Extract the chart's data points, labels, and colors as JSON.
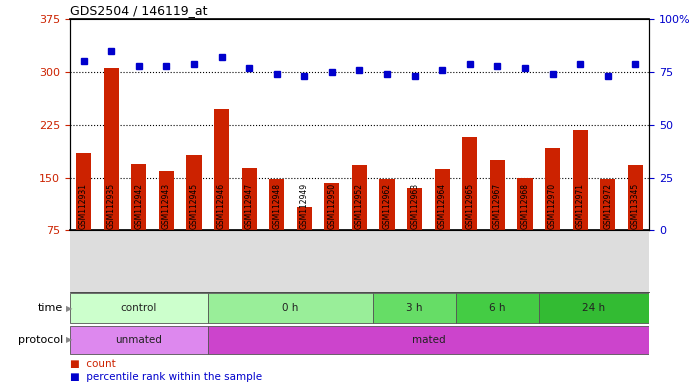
{
  "title": "GDS2504 / 146119_at",
  "samples": [
    "GSM112931",
    "GSM112935",
    "GSM112942",
    "GSM112943",
    "GSM112945",
    "GSM112946",
    "GSM112947",
    "GSM112948",
    "GSM112949",
    "GSM112950",
    "GSM112952",
    "GSM112962",
    "GSM112963",
    "GSM112964",
    "GSM112965",
    "GSM112967",
    "GSM112968",
    "GSM112970",
    "GSM112971",
    "GSM112972",
    "GSM113345"
  ],
  "bar_values": [
    185,
    305,
    170,
    160,
    182,
    248,
    163,
    148,
    108,
    143,
    168,
    148,
    135,
    162,
    208,
    175,
    150,
    192,
    218,
    148,
    168
  ],
  "dot_values": [
    80,
    85,
    78,
    78,
    79,
    82,
    77,
    74,
    73,
    75,
    76,
    74,
    73,
    76,
    79,
    78,
    77,
    74,
    79,
    73,
    79
  ],
  "bar_color": "#cc2200",
  "dot_color": "#0000cc",
  "ylim_left": [
    75,
    375
  ],
  "ylim_right": [
    0,
    100
  ],
  "yticks_left": [
    75,
    150,
    225,
    300,
    375
  ],
  "ytick_labels_left": [
    "75",
    "150",
    "225",
    "300",
    "375"
  ],
  "yticks_right": [
    0,
    25,
    50,
    75,
    100
  ],
  "ytick_labels_right": [
    "0",
    "25",
    "50",
    "75",
    "100%"
  ],
  "hlines": [
    150,
    225,
    300
  ],
  "groups_time": [
    {
      "label": "control",
      "start": 0,
      "end": 5,
      "color": "#ccffcc"
    },
    {
      "label": "0 h",
      "start": 5,
      "end": 11,
      "color": "#99ee99"
    },
    {
      "label": "3 h",
      "start": 11,
      "end": 14,
      "color": "#66dd66"
    },
    {
      "label": "6 h",
      "start": 14,
      "end": 17,
      "color": "#44cc44"
    },
    {
      "label": "24 h",
      "start": 17,
      "end": 21,
      "color": "#33bb33"
    }
  ],
  "groups_protocol": [
    {
      "label": "unmated",
      "start": 0,
      "end": 5,
      "color": "#dd88ee"
    },
    {
      "label": "mated",
      "start": 5,
      "end": 21,
      "color": "#cc44cc"
    }
  ],
  "fig_bg": "#ffffff",
  "plot_bg": "#ffffff",
  "xlabel_bg": "#dddddd"
}
